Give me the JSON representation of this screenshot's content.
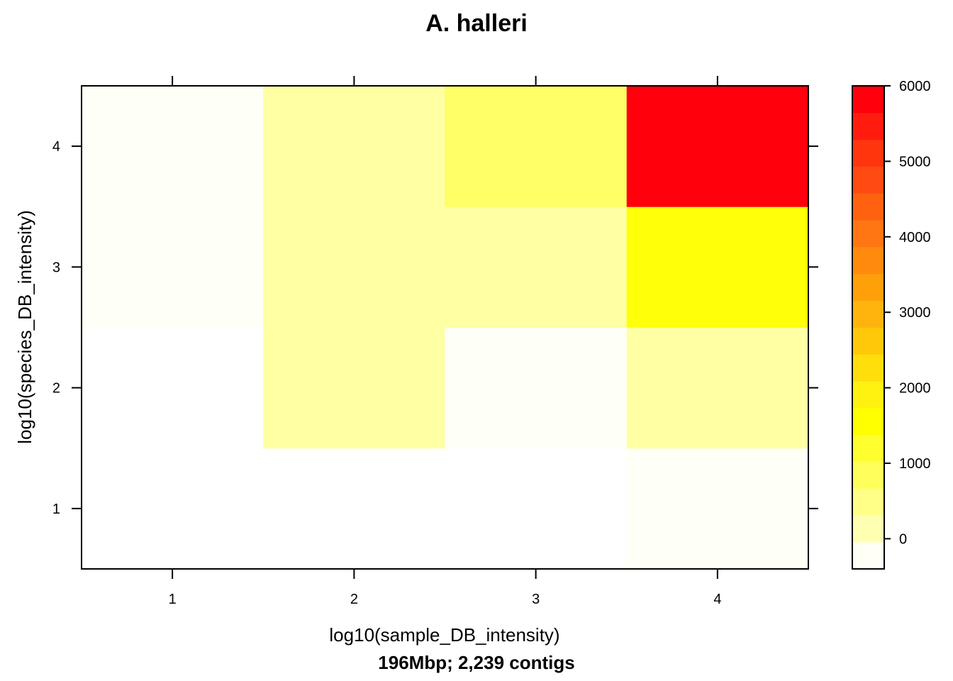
{
  "chart_data": {
    "type": "heatmap",
    "title": "A. halleri",
    "xlabel": "log10(sample_DB_intensity)",
    "ylabel": "log10(species_DB_intensity)",
    "subtitle": "196Mbp; 2,239 contigs",
    "x_ticks": [
      "1",
      "2",
      "3",
      "4"
    ],
    "y_ticks": [
      "1",
      "2",
      "3",
      "4"
    ],
    "colorbar": {
      "ticks": [
        "0",
        "1000",
        "2000",
        "3000",
        "4000",
        "5000",
        "6000"
      ],
      "tick_values": [
        0,
        1000,
        2000,
        3000,
        4000,
        5000,
        6000
      ],
      "range": [
        -400,
        6000
      ],
      "bin_width": 400,
      "colors": [
        "#FFFFF6",
        "#FFFFB2",
        "#FFFF88",
        "#FFFF5C",
        "#FFFF30",
        "#FFFF00",
        "#FFF110",
        "#FFDE0C",
        "#FFC808",
        "#FFB40D",
        "#FFA00B",
        "#FF8A0E",
        "#FF7612",
        "#FF620F",
        "#FF4A12",
        "#FF350E",
        "#FF1C0F",
        "#FF000C"
      ]
    },
    "cells": [
      {
        "x": 1,
        "y": 1,
        "value": -250,
        "color": "#FFFFFF"
      },
      {
        "x": 2,
        "y": 1,
        "value": -250,
        "color": "#FFFFFF"
      },
      {
        "x": 3,
        "y": 1,
        "value": -250,
        "color": "#FFFFFF"
      },
      {
        "x": 4,
        "y": 1,
        "value": -150,
        "color": "#FEFFF6"
      },
      {
        "x": 1,
        "y": 2,
        "value": -250,
        "color": "#FFFFFF"
      },
      {
        "x": 2,
        "y": 2,
        "value": 250,
        "color": "#FFFFA4"
      },
      {
        "x": 3,
        "y": 2,
        "value": -150,
        "color": "#FEFFF6"
      },
      {
        "x": 4,
        "y": 2,
        "value": 250,
        "color": "#FFFFA4"
      },
      {
        "x": 1,
        "y": 3,
        "value": -150,
        "color": "#FEFFF6"
      },
      {
        "x": 2,
        "y": 3,
        "value": 250,
        "color": "#FFFFA4"
      },
      {
        "x": 3,
        "y": 3,
        "value": 250,
        "color": "#FFFFA4"
      },
      {
        "x": 4,
        "y": 3,
        "value": 1400,
        "color": "#FFFF0A"
      },
      {
        "x": 1,
        "y": 4,
        "value": -150,
        "color": "#FEFFF6"
      },
      {
        "x": 2,
        "y": 4,
        "value": 250,
        "color": "#FFFFA4"
      },
      {
        "x": 3,
        "y": 4,
        "value": 700,
        "color": "#FFFF66"
      },
      {
        "x": 4,
        "y": 4,
        "value": 6000,
        "color": "#FF000C"
      }
    ]
  }
}
